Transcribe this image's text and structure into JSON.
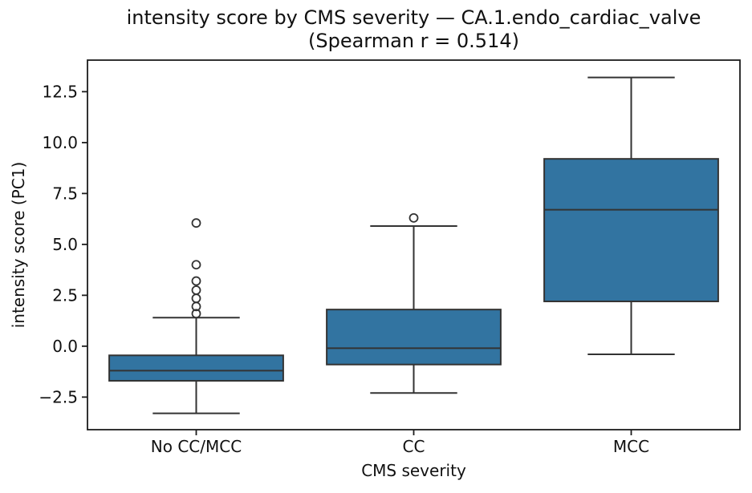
{
  "chart_data": {
    "type": "box",
    "title": "intensity score by CMS severity — CA.1.endo_cardiac_valve",
    "subtitle": "(Spearman r = 0.514)",
    "xlabel": "CMS severity",
    "ylabel": "intensity score (PC1)",
    "categories": [
      "No CC/MCC",
      "CC",
      "MCC"
    ],
    "ylim": [
      -4.1,
      14.05
    ],
    "yticks": [
      12.5,
      10.0,
      7.5,
      5.0,
      2.5,
      0.0,
      -2.5
    ],
    "ytick_labels": [
      "12.5",
      "10.0",
      "7.5",
      "5.0",
      "2.5",
      "0.0",
      "−2.5"
    ],
    "grid": false,
    "legend_position": "none",
    "boxes": [
      {
        "category": "No CC/MCC",
        "whisker_low": -3.3,
        "q1": -1.7,
        "median": -1.2,
        "q3": -0.45,
        "whisker_high": 1.4,
        "outliers": [
          1.6,
          1.95,
          2.35,
          2.75,
          3.2,
          4.0,
          6.05
        ]
      },
      {
        "category": "CC",
        "whisker_low": -2.3,
        "q1": -0.9,
        "median": -0.1,
        "q3": 1.8,
        "whisker_high": 5.9,
        "outliers": [
          6.3
        ]
      },
      {
        "category": "MCC",
        "whisker_low": -0.4,
        "q1": 2.2,
        "median": 6.7,
        "q3": 9.2,
        "whisker_high": 13.2,
        "outliers": []
      }
    ],
    "colors": {
      "box_fill": "#3274a1",
      "box_edge": "#333333",
      "spine": "#1c1c1c",
      "text": "#111111",
      "background": "#ffffff"
    }
  }
}
